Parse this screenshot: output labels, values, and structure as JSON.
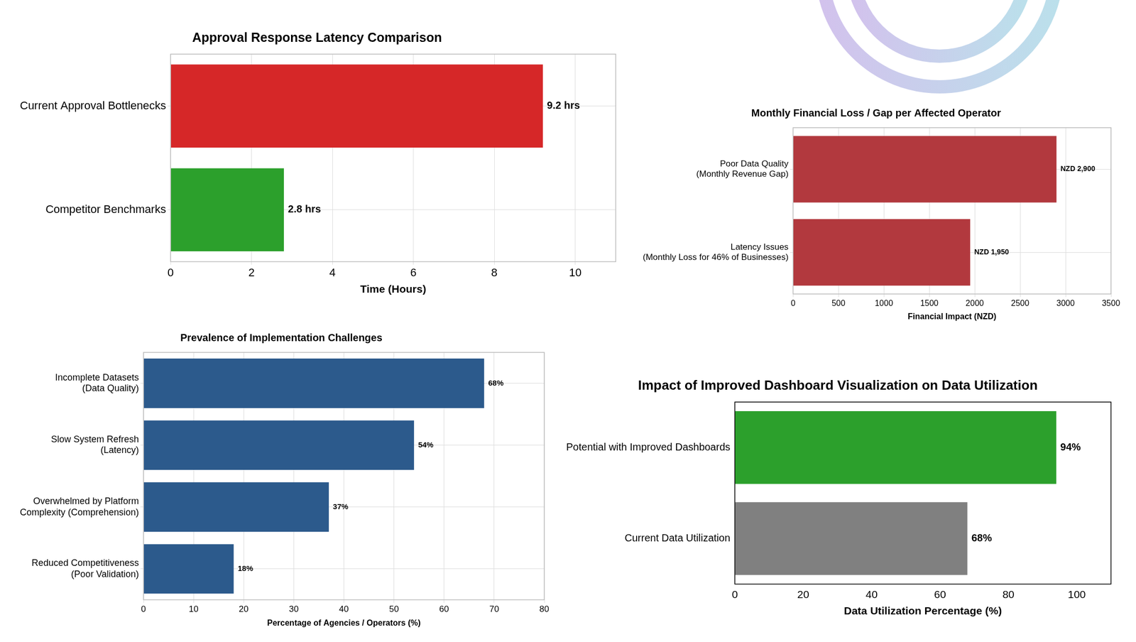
{
  "chart_data": [
    {
      "type": "bar",
      "orientation": "horizontal",
      "title": "Approval Response Latency Comparison",
      "x_label": "Time (Hours)",
      "categories": [
        "Current Approval Bottlenecks",
        "Competitor Benchmarks"
      ],
      "values": [
        9.2,
        2.8
      ],
      "value_labels": [
        "9.2 hrs",
        "2.8 hrs"
      ],
      "colors": [
        "#d62728",
        "#2ca02c"
      ],
      "xlim": [
        0,
        11
      ],
      "xticks": [
        0,
        2,
        4,
        6,
        8,
        10
      ],
      "grid": true,
      "data_labels": true
    },
    {
      "type": "bar",
      "orientation": "horizontal",
      "title": "Monthly Financial Loss / Gap per Affected Operator",
      "x_label": "Financial Impact (NZD)",
      "categories": [
        "Poor Data Quality\n(Monthly Revenue Gap)",
        "Latency Issues\n(Monthly Loss for 46% of Businesses)"
      ],
      "values": [
        2900,
        1950
      ],
      "value_labels": [
        "NZD 2,900",
        "NZD 1,950"
      ],
      "color": "#b2393e",
      "xlim": [
        0,
        3500
      ],
      "xticks": [
        0,
        500,
        1000,
        1500,
        2000,
        2500,
        3000,
        3500
      ],
      "grid": true,
      "data_labels": true
    },
    {
      "type": "bar",
      "orientation": "horizontal",
      "title": "Prevalence of Implementation Challenges",
      "x_label": "Percentage of Agencies / Operators (%)",
      "categories": [
        "Incomplete Datasets\n(Data Quality)",
        "Slow System Refresh\n(Latency)",
        "Overwhelmed by Platform\nComplexity (Comprehension)",
        "Reduced Competitiveness\n(Poor Validation)"
      ],
      "values": [
        68,
        54,
        37,
        18
      ],
      "value_labels": [
        "68%",
        "54%",
        "37%",
        "18%"
      ],
      "color": "#2c5a8c",
      "xlim": [
        0,
        80
      ],
      "xticks": [
        0,
        10,
        20,
        30,
        40,
        50,
        60,
        70,
        80
      ],
      "grid": true,
      "data_labels": true
    },
    {
      "type": "bar",
      "orientation": "horizontal",
      "title": "Impact of Improved Dashboard Visualization on Data Utilization",
      "x_label": "Data Utilization Percentage (%)",
      "categories": [
        "Potential with Improved Dashboards",
        "Current Data Utilization"
      ],
      "values": [
        94,
        68
      ],
      "value_labels": [
        "94%",
        "68%"
      ],
      "colors": [
        "#2ca02c",
        "#808080"
      ],
      "xlim": [
        0,
        110
      ],
      "xticks": [
        0,
        20,
        40,
        60,
        80,
        100
      ],
      "grid": false,
      "data_labels": true
    }
  ]
}
